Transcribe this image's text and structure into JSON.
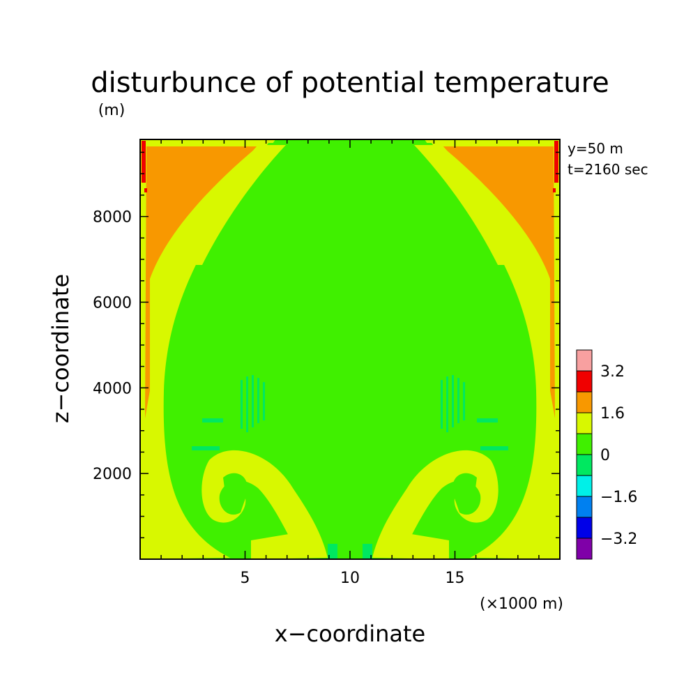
{
  "chart_data": {
    "type": "heatmap",
    "title": "disturbunce of potential temperature",
    "ylabel_unit": "(m)",
    "xlabel": "x−coordinate",
    "ylabel": "z−coordinate",
    "xunit": "(×1000 m)",
    "annotations": [
      "y=50 m",
      "t=2160 sec"
    ],
    "xlim": [
      0,
      20
    ],
    "ylim": [
      0,
      9800
    ],
    "xticks": [
      5,
      10,
      15
    ],
    "xtick_labels": [
      "5",
      "10",
      "15"
    ],
    "yticks": [
      2000,
      4000,
      6000,
      8000
    ],
    "ytick_labels": [
      "2000",
      "4000",
      "6000",
      "8000"
    ],
    "colorbar": {
      "levels": [
        -4.0,
        -3.2,
        -2.4,
        -1.6,
        -0.8,
        0,
        0.8,
        1.6,
        2.4,
        3.2,
        4.0
      ],
      "colors": [
        "#7f00a8",
        "#0000e8",
        "#0080f0",
        "#00f0e8",
        "#00e860",
        "#40f000",
        "#d8f800",
        "#f89800",
        "#f00000",
        "#f8a0a0"
      ],
      "tick_labels": [
        "3.2",
        "1.6",
        "0",
        "−1.6",
        "−3.2"
      ]
    },
    "field_colors": {
      "background": "#40f000",
      "positive_weak": "#d8f800",
      "positive_mid": "#f89800",
      "positive_strong": "#f00000",
      "negative_weak": "#00e860"
    }
  }
}
